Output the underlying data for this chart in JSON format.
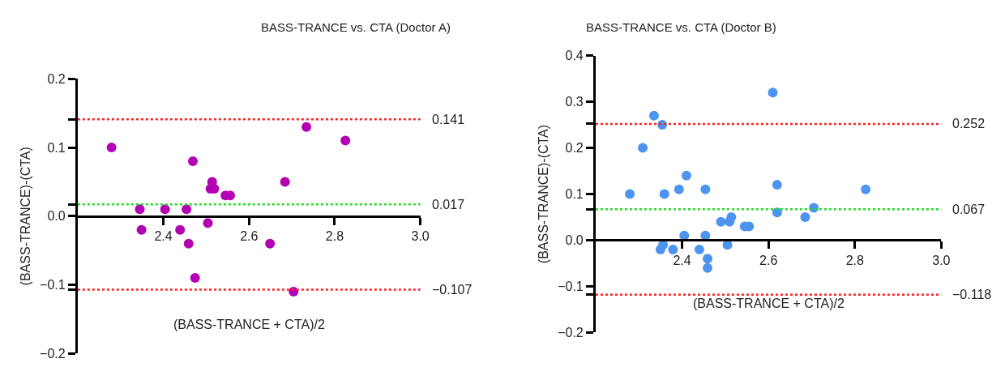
{
  "chart_data": [
    {
      "type": "scatter",
      "title": "BASS-TRANCE vs. CTA (Doctor A)",
      "xlabel": "(BASS-TRANCE + CTA)/2",
      "ylabel": "(BASS-TRANCE)-(CTA)",
      "x": [
        2.279,
        2.734,
        2.825,
        2.469,
        2.514,
        2.51,
        2.519,
        2.545,
        2.556,
        2.684,
        2.345,
        2.404,
        2.454,
        2.504,
        2.349,
        2.439,
        2.459,
        2.649,
        2.474,
        2.704
      ],
      "series": [
        {
          "color": "#b400b4",
          "values": [
            0.1,
            0.13,
            0.11,
            0.08,
            0.05,
            0.04,
            0.04,
            0.03,
            0.03,
            0.05,
            0.01,
            0.01,
            0.01,
            -0.01,
            -0.02,
            -0.02,
            -0.04,
            -0.04,
            -0.09,
            -0.11
          ]
        }
      ],
      "xlim": [
        2.2,
        3.0
      ],
      "xticks": [
        2.4,
        2.6,
        2.8,
        {
          "value": 3.0,
          "label": "3.0"
        }
      ],
      "ylim": [
        -0.2,
        0.2
      ],
      "yticks": [
        {
          "value": -0.2,
          "label": "−0.2"
        },
        {
          "value": -0.107,
          "label": null
        },
        {
          "value": -0.1,
          "label": "−0.1"
        },
        {
          "value": 0,
          "label": "0.0"
        },
        {
          "value": 0.017,
          "label": null
        },
        {
          "value": 0.1,
          "label": "0.1"
        },
        {
          "value": 0.141,
          "label": null
        },
        {
          "value": 0.2,
          "label": "0.2"
        }
      ],
      "ref_lines": [
        {
          "axis": "y",
          "value": 0.141,
          "label": "0.141",
          "color": "#ff2020",
          "line_style": "dotted"
        },
        {
          "axis": "y",
          "value": 0.017,
          "label": "0.017",
          "color": "#22dd22",
          "line_style": "dotted"
        },
        {
          "axis": "y",
          "value": -0.107,
          "label": "−0.107",
          "color": "#ff2020",
          "line_style": "dotted"
        }
      ],
      "marker": "circle"
    },
    {
      "type": "scatter",
      "title": "BASS-TRANCE vs. CTA (Doctor B)",
      "xlabel": "(BASS-TRANCE + CTA)/2",
      "ylabel": "(BASS-TRANCE)-(CTA)",
      "x": [
        2.61,
        2.335,
        2.354,
        2.309,
        2.41,
        2.62,
        2.279,
        2.359,
        2.393,
        2.454,
        2.825,
        2.62,
        2.705,
        2.685,
        2.49,
        2.51,
        2.514,
        2.545,
        2.555,
        2.405,
        2.454,
        2.356,
        2.35,
        2.379,
        2.44,
        2.505,
        2.459,
        2.459
      ],
      "series": [
        {
          "color": "#4d94f0",
          "values": [
            0.32,
            0.27,
            0.25,
            0.2,
            0.14,
            0.12,
            0.1,
            0.1,
            0.11,
            0.11,
            0.11,
            0.06,
            0.07,
            0.05,
            0.04,
            0.04,
            0.05,
            0.03,
            0.03,
            0.01,
            0.01,
            -0.01,
            -0.02,
            -0.02,
            -0.02,
            -0.01,
            -0.04,
            -0.06
          ]
        }
      ],
      "xlim": [
        2.2,
        3.0
      ],
      "xticks": [
        2.4,
        2.6,
        2.8,
        {
          "value": 3.0,
          "label": "3.0"
        }
      ],
      "ylim": [
        -0.2,
        0.4
      ],
      "yticks": [
        {
          "value": -0.2,
          "label": "−0.2"
        },
        {
          "value": -0.118,
          "label": null
        },
        {
          "value": -0.1,
          "label": "−0.1"
        },
        {
          "value": 0,
          "label": "0.0"
        },
        {
          "value": 0.067,
          "label": null
        },
        {
          "value": 0.1,
          "label": "0.1"
        },
        {
          "value": 0.2,
          "label": "0.2"
        },
        {
          "value": 0.252,
          "label": null
        },
        {
          "value": 0.3,
          "label": "0.3"
        },
        {
          "value": 0.4,
          "label": "0.4"
        }
      ],
      "ref_lines": [
        {
          "axis": "y",
          "value": 0.252,
          "label": "0.252",
          "color": "#ff2020",
          "line_style": "dotted"
        },
        {
          "axis": "y",
          "value": 0.067,
          "label": "0.067",
          "color": "#22dd22",
          "line_style": "dotted"
        },
        {
          "axis": "y",
          "value": -0.118,
          "label": "−0.118",
          "color": "#ff2020",
          "line_style": "dotted"
        }
      ],
      "marker": "circle"
    }
  ]
}
